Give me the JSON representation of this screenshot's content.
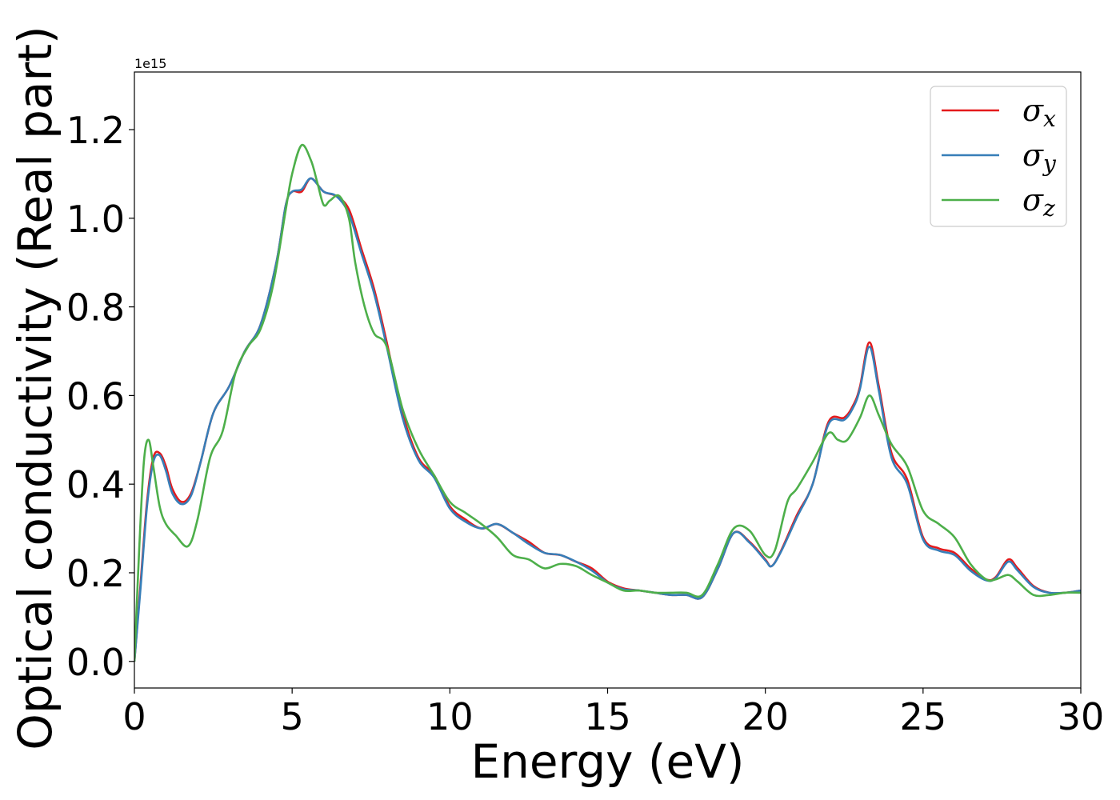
{
  "chart_data": {
    "type": "line",
    "xlabel": "Energy (eV)",
    "ylabel": "Optical conductivity (Real part)",
    "y_offset_label": "1e15",
    "xlim": [
      0,
      30
    ],
    "ylim": [
      -0.06,
      1.33
    ],
    "xticks": [
      0,
      5,
      10,
      15,
      20,
      25,
      30
    ],
    "xtick_labels": [
      "0",
      "5",
      "10",
      "15",
      "20",
      "25",
      "30"
    ],
    "yticks": [
      0.0,
      0.2,
      0.4,
      0.6,
      0.8,
      1.0,
      1.2
    ],
    "ytick_labels": [
      "0.0",
      "0.2",
      "0.4",
      "0.6",
      "0.8",
      "1.0",
      "1.2"
    ],
    "grid": false,
    "legend_position": "top-right",
    "series": [
      {
        "name": "σx",
        "symbol": "σ",
        "subscript": "x",
        "color": "#e41a1c",
        "x": [
          0,
          0.2,
          0.4,
          0.6,
          0.8,
          1.0,
          1.2,
          1.5,
          1.8,
          2.1,
          2.5,
          3.0,
          3.5,
          4.0,
          4.5,
          4.8,
          5.0,
          5.3,
          5.6,
          6.0,
          6.4,
          6.8,
          7.2,
          7.6,
          8.0,
          8.5,
          9.0,
          9.5,
          10.0,
          10.5,
          11.0,
          11.5,
          12.0,
          12.5,
          13.0,
          13.5,
          14.0,
          14.5,
          15.0,
          15.5,
          16.0,
          16.5,
          17.0,
          17.5,
          18.0,
          18.5,
          19.0,
          19.5,
          20.0,
          20.2,
          20.5,
          21.0,
          21.5,
          22.0,
          22.5,
          22.8,
          23.0,
          23.3,
          23.6,
          24.0,
          24.5,
          25.0,
          25.5,
          26.0,
          26.5,
          27.0,
          27.3,
          27.7,
          28.0,
          28.5,
          29.0,
          29.5,
          30.0
        ],
        "y": [
          0.0,
          0.18,
          0.36,
          0.46,
          0.47,
          0.44,
          0.39,
          0.36,
          0.38,
          0.45,
          0.56,
          0.62,
          0.7,
          0.76,
          0.9,
          1.03,
          1.06,
          1.06,
          1.09,
          1.06,
          1.05,
          1.02,
          0.93,
          0.84,
          0.72,
          0.56,
          0.46,
          0.42,
          0.35,
          0.32,
          0.3,
          0.31,
          0.29,
          0.27,
          0.245,
          0.24,
          0.225,
          0.21,
          0.18,
          0.165,
          0.16,
          0.155,
          0.15,
          0.15,
          0.145,
          0.21,
          0.29,
          0.27,
          0.23,
          0.215,
          0.25,
          0.33,
          0.4,
          0.54,
          0.55,
          0.58,
          0.62,
          0.72,
          0.62,
          0.47,
          0.41,
          0.28,
          0.255,
          0.245,
          0.21,
          0.185,
          0.19,
          0.23,
          0.21,
          0.17,
          0.155,
          0.155,
          0.16
        ]
      },
      {
        "name": "σy",
        "symbol": "σ",
        "subscript": "y",
        "color": "#377eb8",
        "x": [
          0,
          0.2,
          0.4,
          0.6,
          0.8,
          1.0,
          1.2,
          1.5,
          1.8,
          2.1,
          2.5,
          3.0,
          3.5,
          4.0,
          4.5,
          4.8,
          5.0,
          5.3,
          5.6,
          6.0,
          6.4,
          6.8,
          7.2,
          7.6,
          8.0,
          8.5,
          9.0,
          9.5,
          10.0,
          10.5,
          11.0,
          11.5,
          12.0,
          12.5,
          13.0,
          13.5,
          14.0,
          14.5,
          15.0,
          15.5,
          16.0,
          16.5,
          17.0,
          17.5,
          18.0,
          18.5,
          19.0,
          19.5,
          20.0,
          20.2,
          20.5,
          21.0,
          21.5,
          22.0,
          22.5,
          22.8,
          23.0,
          23.3,
          23.6,
          24.0,
          24.5,
          25.0,
          25.5,
          26.0,
          26.5,
          27.0,
          27.3,
          27.7,
          28.0,
          28.5,
          29.0,
          29.5,
          30.0
        ],
        "y": [
          0.0,
          0.17,
          0.35,
          0.45,
          0.465,
          0.43,
          0.38,
          0.355,
          0.375,
          0.45,
          0.56,
          0.62,
          0.7,
          0.76,
          0.9,
          1.03,
          1.06,
          1.065,
          1.09,
          1.06,
          1.05,
          1.01,
          0.92,
          0.83,
          0.71,
          0.55,
          0.455,
          0.415,
          0.345,
          0.315,
          0.3,
          0.31,
          0.29,
          0.265,
          0.245,
          0.24,
          0.225,
          0.205,
          0.178,
          0.163,
          0.16,
          0.155,
          0.15,
          0.15,
          0.145,
          0.21,
          0.29,
          0.268,
          0.228,
          0.215,
          0.248,
          0.325,
          0.4,
          0.535,
          0.545,
          0.575,
          0.615,
          0.71,
          0.61,
          0.46,
          0.4,
          0.275,
          0.25,
          0.24,
          0.205,
          0.183,
          0.188,
          0.225,
          0.205,
          0.168,
          0.155,
          0.155,
          0.16
        ]
      },
      {
        "name": "σz",
        "symbol": "σ",
        "subscript": "z",
        "color": "#4daf4a",
        "x": [
          0,
          0.15,
          0.3,
          0.45,
          0.6,
          0.8,
          1.0,
          1.3,
          1.7,
          2.0,
          2.4,
          2.8,
          3.2,
          3.6,
          4.0,
          4.4,
          4.8,
          5.0,
          5.3,
          5.6,
          5.8,
          6.0,
          6.2,
          6.5,
          6.8,
          7.0,
          7.3,
          7.6,
          8.0,
          8.5,
          9.0,
          9.5,
          10.0,
          10.5,
          11.0,
          11.5,
          12.0,
          12.5,
          13.0,
          13.5,
          14.0,
          14.5,
          15.0,
          15.5,
          16.0,
          16.5,
          17.0,
          17.5,
          18.0,
          18.5,
          19.0,
          19.5,
          20.0,
          20.3,
          20.7,
          21.0,
          21.5,
          22.0,
          22.3,
          22.6,
          23.0,
          23.3,
          23.6,
          24.0,
          24.5,
          25.0,
          25.5,
          26.0,
          26.5,
          27.0,
          27.3,
          27.7,
          28.0,
          28.5,
          29.0,
          29.5,
          30.0
        ],
        "y": [
          0.0,
          0.25,
          0.45,
          0.5,
          0.44,
          0.35,
          0.31,
          0.285,
          0.26,
          0.32,
          0.46,
          0.52,
          0.65,
          0.71,
          0.75,
          0.85,
          1.02,
          1.1,
          1.165,
          1.13,
          1.08,
          1.03,
          1.04,
          1.05,
          1.0,
          0.9,
          0.8,
          0.74,
          0.71,
          0.57,
          0.48,
          0.42,
          0.36,
          0.335,
          0.31,
          0.28,
          0.24,
          0.23,
          0.21,
          0.22,
          0.215,
          0.195,
          0.178,
          0.16,
          0.16,
          0.155,
          0.155,
          0.155,
          0.15,
          0.22,
          0.3,
          0.295,
          0.24,
          0.25,
          0.36,
          0.39,
          0.45,
          0.515,
          0.5,
          0.5,
          0.55,
          0.6,
          0.555,
          0.49,
          0.44,
          0.34,
          0.31,
          0.28,
          0.22,
          0.185,
          0.185,
          0.195,
          0.18,
          0.15,
          0.15,
          0.155,
          0.155
        ]
      }
    ]
  }
}
